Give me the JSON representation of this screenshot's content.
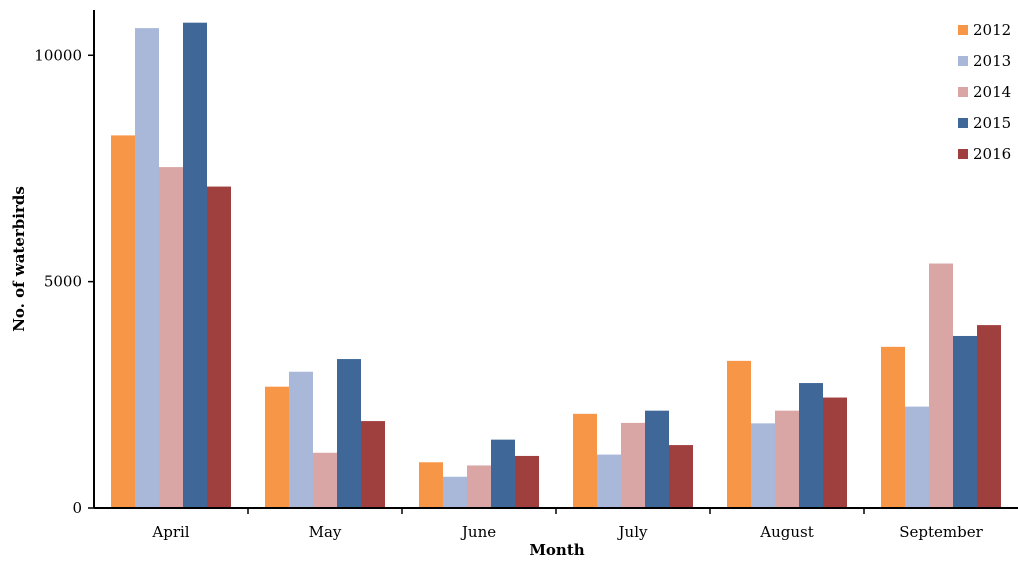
{
  "chart_data": {
    "type": "bar",
    "title": "",
    "xlabel": "Month",
    "ylabel": "No. of waterbirds",
    "ylim": [
      0,
      11000
    ],
    "yticks": [
      0,
      5000,
      10000
    ],
    "grid": false,
    "legend_position": "top-right",
    "categories": [
      "April",
      "May",
      "June",
      "July",
      "August",
      "September"
    ],
    "series": [
      {
        "name": "2012",
        "color": "#F79646",
        "values": [
          8230,
          2680,
          1010,
          2080,
          3250,
          3560
        ]
      },
      {
        "name": "2013",
        "color": "#A9B8D8",
        "values": [
          10600,
          3010,
          690,
          1180,
          1870,
          2240
        ]
      },
      {
        "name": "2014",
        "color": "#D9A5A5",
        "values": [
          7530,
          1220,
          940,
          1880,
          2150,
          5400
        ]
      },
      {
        "name": "2015",
        "color": "#3F6899",
        "values": [
          10720,
          3290,
          1510,
          2150,
          2760,
          3800
        ]
      },
      {
        "name": "2016",
        "color": "#A0403E",
        "values": [
          7100,
          1920,
          1150,
          1390,
          2440,
          4040
        ]
      }
    ]
  }
}
